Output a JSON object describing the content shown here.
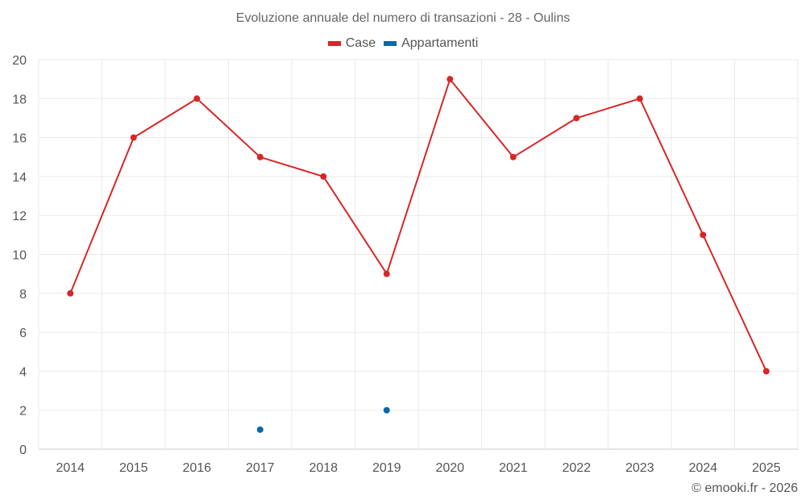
{
  "chart_data": {
    "type": "line",
    "title": "Evoluzione annuale del numero di transazioni - 28 - Oulins",
    "xlabel": "",
    "ylabel": "",
    "categories": [
      "2014",
      "2015",
      "2016",
      "2017",
      "2018",
      "2019",
      "2020",
      "2021",
      "2022",
      "2023",
      "2024",
      "2025"
    ],
    "ylim": [
      0,
      20
    ],
    "yticks": [
      0,
      2,
      4,
      6,
      8,
      10,
      12,
      14,
      16,
      18,
      20
    ],
    "grid": true,
    "legend_position": "top-center",
    "series": [
      {
        "name": "Case",
        "color": "#d62728",
        "line": true,
        "values": [
          8,
          16,
          18,
          15,
          14,
          9,
          19,
          15,
          17,
          18,
          11,
          4
        ]
      },
      {
        "name": "Appartamenti",
        "color": "#0868a8",
        "line": false,
        "values": [
          null,
          null,
          null,
          1,
          null,
          2,
          null,
          null,
          null,
          null,
          null,
          null
        ]
      }
    ]
  },
  "credit": "© emooki.fr - 2026"
}
